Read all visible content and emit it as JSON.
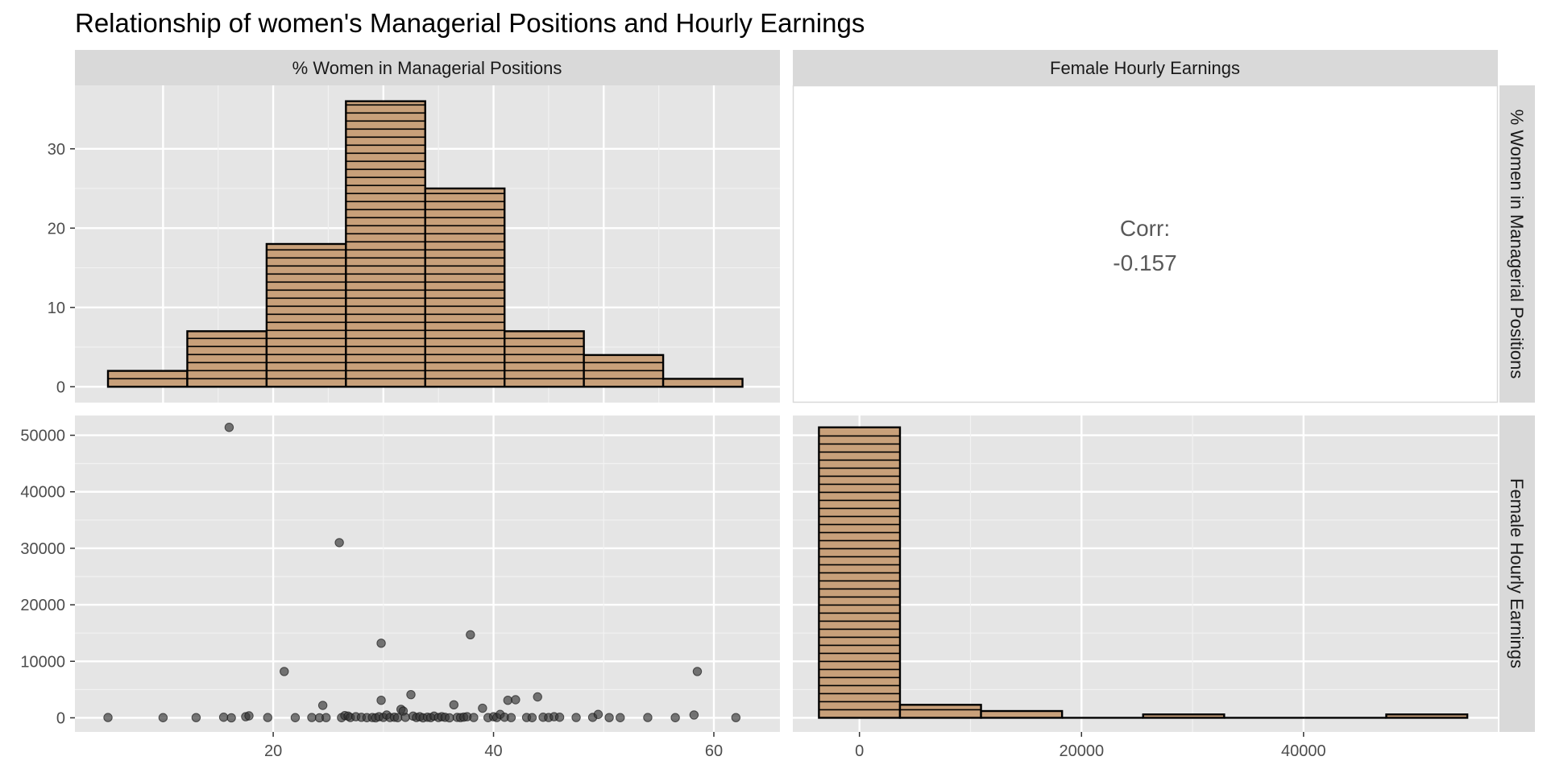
{
  "chart_data": {
    "type": "pairs-matrix",
    "title": "Relationship of women's Managerial Positions and Hourly Earnings",
    "variables": [
      "% Women in Managerial Positions",
      "Female Hourly Earnings"
    ],
    "colors": {
      "panel_bg": "#e5e5e5",
      "strip_bg": "#d9d9d9",
      "bar_fill": "#c8a07a",
      "bar_stroke": "#000000",
      "point": "#333333"
    },
    "panels": {
      "hist_pct": {
        "type": "bar",
        "xlim": [
          2,
          66
        ],
        "ylim": [
          -2,
          38
        ],
        "y_ticks": [
          0,
          10,
          20,
          30
        ],
        "bins": [
          {
            "x0": 5,
            "x1": 12.2,
            "count": 2
          },
          {
            "x0": 12.2,
            "x1": 19.4,
            "count": 7
          },
          {
            "x0": 19.4,
            "x1": 26.6,
            "count": 18
          },
          {
            "x0": 26.6,
            "x1": 33.8,
            "count": 36
          },
          {
            "x0": 33.8,
            "x1": 41.0,
            "count": 25
          },
          {
            "x0": 41.0,
            "x1": 48.2,
            "count": 7
          },
          {
            "x0": 48.2,
            "x1": 55.4,
            "count": 4
          },
          {
            "x0": 55.4,
            "x1": 62.6,
            "count": 1
          }
        ]
      },
      "corr": {
        "label": "Corr:",
        "value": "-0.157"
      },
      "scatter": {
        "type": "scatter",
        "xlim": [
          2,
          66
        ],
        "ylim": [
          -2500,
          53500
        ],
        "x_ticks": [
          20,
          40,
          60
        ],
        "y_ticks": [
          0,
          10000,
          20000,
          30000,
          40000,
          50000
        ],
        "points": [
          [
            5,
            50
          ],
          [
            10,
            30
          ],
          [
            13,
            40
          ],
          [
            15.5,
            100
          ],
          [
            16,
            51400
          ],
          [
            16.2,
            0
          ],
          [
            17.5,
            200
          ],
          [
            17.8,
            350
          ],
          [
            19.5,
            50
          ],
          [
            21,
            8200
          ],
          [
            22,
            30
          ],
          [
            23.5,
            60
          ],
          [
            24.2,
            0
          ],
          [
            24.5,
            2200
          ],
          [
            24.8,
            40
          ],
          [
            26,
            31000
          ],
          [
            26.2,
            30
          ],
          [
            26.5,
            400
          ],
          [
            26.8,
            300
          ],
          [
            27,
            60
          ],
          [
            27.5,
            200
          ],
          [
            28,
            90
          ],
          [
            28.5,
            30
          ],
          [
            29,
            60
          ],
          [
            29.3,
            0
          ],
          [
            29.6,
            200
          ],
          [
            29.8,
            3100
          ],
          [
            29.8,
            13200
          ],
          [
            30,
            70
          ],
          [
            30.3,
            500
          ],
          [
            30.6,
            50
          ],
          [
            31,
            100
          ],
          [
            31.3,
            30
          ],
          [
            31.6,
            1500
          ],
          [
            31.8,
            1200
          ],
          [
            32,
            80
          ],
          [
            32.5,
            4100
          ],
          [
            32.7,
            300
          ],
          [
            33,
            50
          ],
          [
            33.3,
            200
          ],
          [
            33.6,
            0
          ],
          [
            34,
            100
          ],
          [
            34.3,
            40
          ],
          [
            34.6,
            300
          ],
          [
            35,
            60
          ],
          [
            35.3,
            200
          ],
          [
            35.6,
            90
          ],
          [
            36,
            0
          ],
          [
            36.4,
            2300
          ],
          [
            36.7,
            80
          ],
          [
            37,
            40
          ],
          [
            37.3,
            120
          ],
          [
            37.6,
            200
          ],
          [
            37.9,
            14700
          ],
          [
            38.2,
            60
          ],
          [
            39,
            1700
          ],
          [
            39.5,
            30
          ],
          [
            40,
            200
          ],
          [
            40.3,
            50
          ],
          [
            40.6,
            600
          ],
          [
            41,
            100
          ],
          [
            41.3,
            3100
          ],
          [
            41.6,
            40
          ],
          [
            42,
            3200
          ],
          [
            43,
            60
          ],
          [
            43.5,
            30
          ],
          [
            44,
            3700
          ],
          [
            44.5,
            100
          ],
          [
            45,
            50
          ],
          [
            45.5,
            200
          ],
          [
            46,
            100
          ],
          [
            47.5,
            60
          ],
          [
            49,
            80
          ],
          [
            49.5,
            600
          ],
          [
            50.5,
            40
          ],
          [
            51.5,
            30
          ],
          [
            54,
            50
          ],
          [
            56.5,
            30
          ],
          [
            58.2,
            500
          ],
          [
            58.5,
            8200
          ],
          [
            62,
            40
          ]
        ]
      },
      "hist_earn": {
        "type": "bar",
        "xlim": [
          -6000,
          57500
        ],
        "ylim": [
          -2500,
          53500
        ],
        "x_ticks": [
          0,
          20000,
          40000
        ],
        "bins": [
          {
            "x0": -3650,
            "x1": 3650,
            "count": 51400
          },
          {
            "x0": 3650,
            "x1": 10950,
            "count": 2300
          },
          {
            "x0": 10950,
            "x1": 18250,
            "count": 1200
          },
          {
            "x0": 18250,
            "x1": 25550,
            "count": 0
          },
          {
            "x0": 25550,
            "x1": 32850,
            "count": 600
          },
          {
            "x0": 32850,
            "x1": 40150,
            "count": 0
          },
          {
            "x0": 40150,
            "x1": 47450,
            "count": 0
          },
          {
            "x0": 47450,
            "x1": 54750,
            "count": 600
          }
        ]
      }
    }
  }
}
